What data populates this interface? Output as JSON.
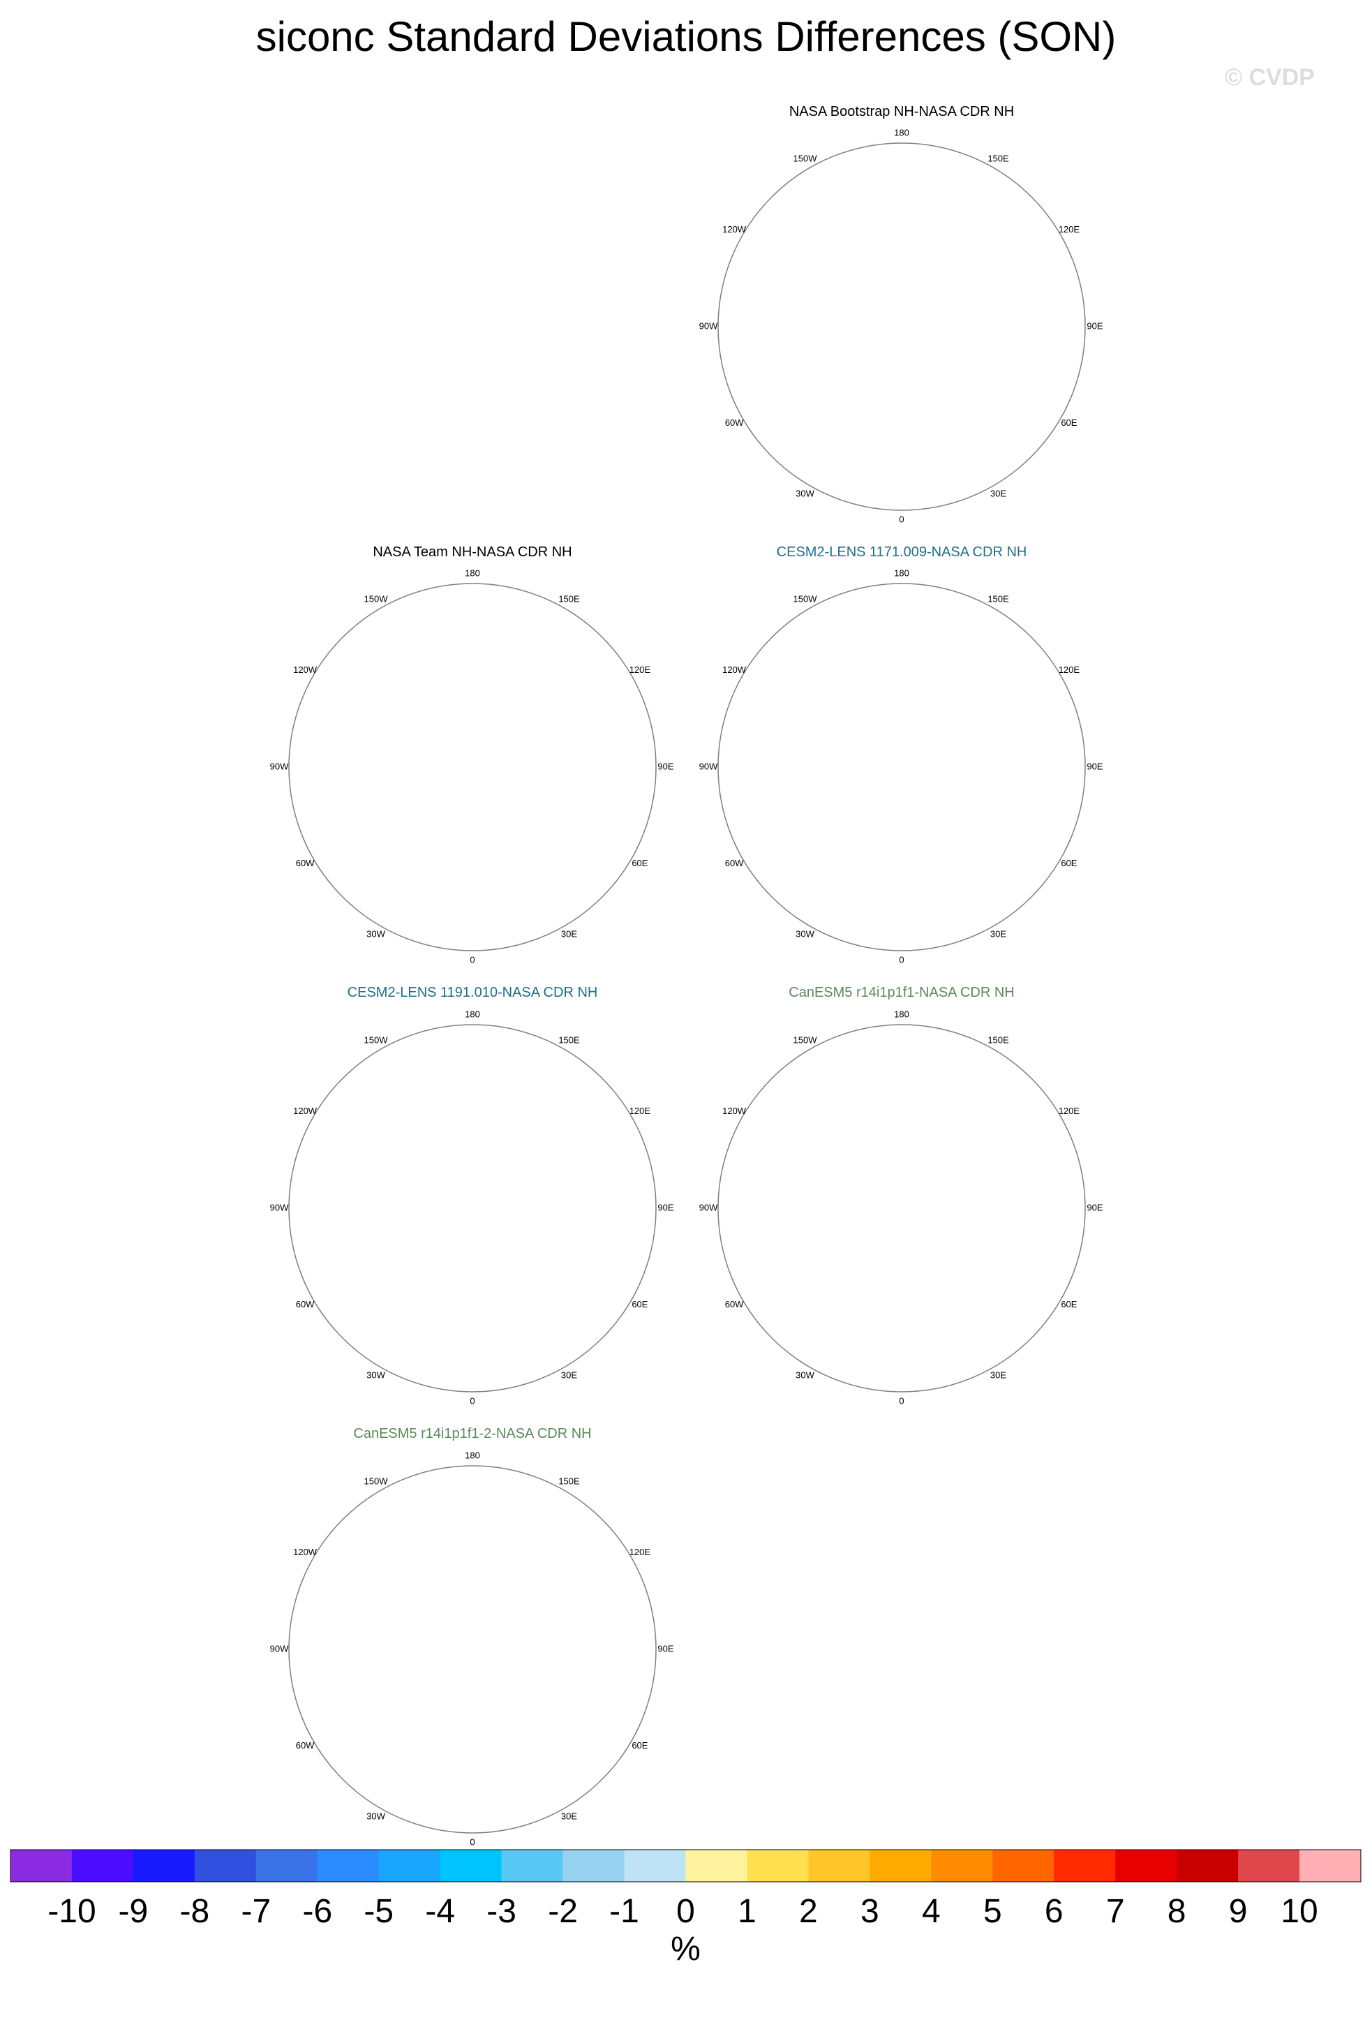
{
  "title": "siconc Standard Deviations Differences (SON)",
  "watermark": "© CVDP",
  "colors": {
    "land": "#bebebe",
    "ocean": "#ffffff",
    "border": "#7f7f7f",
    "panel_title_obs": "#000000",
    "panel_title_cesm": "#1f6e8c",
    "panel_title_canesm": "#5a8a5a"
  },
  "lon_labels": [
    "180",
    "150E",
    "120E",
    "90E",
    "60E",
    "30E",
    "0",
    "30W",
    "60W",
    "90W",
    "120W",
    "150W"
  ],
  "panels": [
    {
      "title": "NASA Bootstrap NH-NASA CDR NH",
      "title_color": "panel_title_obs",
      "pattern": "bootstrap"
    },
    {
      "title": "NASA Team NH-NASA CDR NH",
      "title_color": "panel_title_obs",
      "pattern": "team"
    },
    {
      "title": "CESM2-LENS 1171.009-NASA CDR NH",
      "title_color": "panel_title_cesm",
      "pattern": "cesm1"
    },
    {
      "title": "CESM2-LENS 1191.010-NASA CDR NH",
      "title_color": "panel_title_cesm",
      "pattern": "cesm2"
    },
    {
      "title": "CanESM5 r14i1p1f1-NASA CDR NH",
      "title_color": "panel_title_canesm",
      "pattern": "can1"
    },
    {
      "title": "CanESM5 r14i1p1f1-2-NASA CDR NH",
      "title_color": "panel_title_canesm",
      "pattern": "can2"
    }
  ],
  "chart_data": {
    "type": "heatmap",
    "title": "siconc Standard Deviations Differences (SON)",
    "projection": "north polar stereographic",
    "colorbar": {
      "unit": "%",
      "tick_labels": [
        "-10",
        "-9",
        "-8",
        "-7",
        "-6",
        "-5",
        "-4",
        "-3",
        "-2",
        "-1",
        "0",
        "1",
        "2",
        "3",
        "4",
        "5",
        "6",
        "7",
        "8",
        "9",
        "10"
      ],
      "levels": [
        -10,
        -9,
        -8,
        -7,
        -6,
        -5,
        -4,
        -3,
        -2,
        -1,
        0,
        1,
        2,
        3,
        4,
        5,
        6,
        7,
        8,
        9,
        10
      ],
      "colors": [
        "#8a2be2",
        "#4a0dff",
        "#1a1aff",
        "#3050e0",
        "#3a72e8",
        "#2a8cff",
        "#18a6ff",
        "#00c4ff",
        "#5ac8f5",
        "#96d2f0",
        "#bfe3f5",
        "#fff3a0",
        "#ffe14f",
        "#ffc529",
        "#ffaa00",
        "#ff8c00",
        "#ff6600",
        "#ff2a00",
        "#e60000",
        "#c80000",
        "#e0474c",
        "#ffb0b5"
      ]
    },
    "panels": [
      "NASA Bootstrap NH-NASA CDR NH",
      "NASA Team NH-NASA CDR NH",
      "CESM2-LENS 1171.009-NASA CDR NH",
      "CESM2-LENS 1191.010-NASA CDR NH",
      "CanESM5 r14i1p1f1-NASA CDR NH",
      "CanESM5 r14i1p1f1-2-NASA CDR NH"
    ]
  }
}
